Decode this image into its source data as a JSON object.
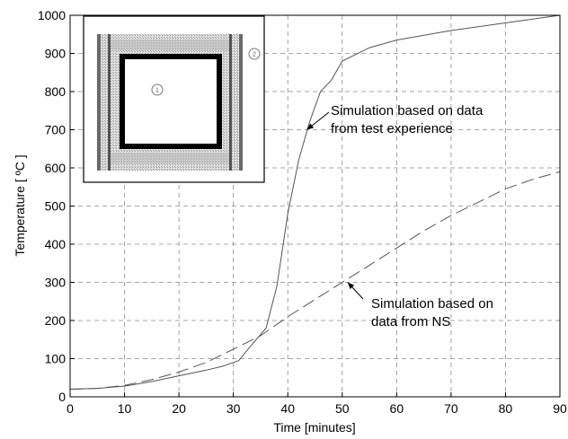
{
  "chart_data": {
    "type": "line",
    "xlabel": "Time [minutes]",
    "ylabel": "Temperature [ ºC ]",
    "xlim": [
      0,
      90
    ],
    "ylim": [
      0,
      1000
    ],
    "xticks": [
      "0",
      "10",
      "20",
      "30",
      "40",
      "50",
      "60",
      "70",
      "80",
      "90"
    ],
    "yticks": [
      "0",
      "100",
      "200",
      "300",
      "400",
      "500",
      "600",
      "700",
      "800",
      "900",
      "1000"
    ],
    "grid": true,
    "series": [
      {
        "style": "solid",
        "x": [
          0,
          5,
          10,
          15,
          20,
          25,
          28,
          31,
          33,
          36,
          38,
          40,
          42,
          44,
          46,
          48,
          50,
          55,
          60,
          70,
          80,
          85,
          90
        ],
        "y": [
          20,
          22,
          28,
          40,
          55,
          70,
          80,
          95,
          130,
          180,
          290,
          480,
          620,
          720,
          800,
          830,
          880,
          915,
          935,
          960,
          980,
          990,
          1000
        ]
      },
      {
        "style": "dashed",
        "x": [
          0,
          5,
          10,
          15,
          20,
          25,
          30,
          35,
          40,
          45,
          50,
          55,
          60,
          65,
          70,
          75,
          80,
          85,
          90
        ],
        "y": [
          20,
          22,
          30,
          45,
          65,
          90,
          125,
          160,
          210,
          255,
          300,
          345,
          390,
          435,
          475,
          510,
          545,
          570,
          590
        ]
      }
    ],
    "annotations": [
      {
        "lines": [
          "Simulation based on data",
          "from test experience"
        ],
        "target": {
          "x": 43.5,
          "y": 700
        }
      },
      {
        "lines": [
          "Simulation based on",
          "data from NS"
        ],
        "target": {
          "x": 51,
          "y": 300
        }
      }
    ],
    "inset": {
      "markers": [
        "1",
        "2"
      ]
    }
  }
}
